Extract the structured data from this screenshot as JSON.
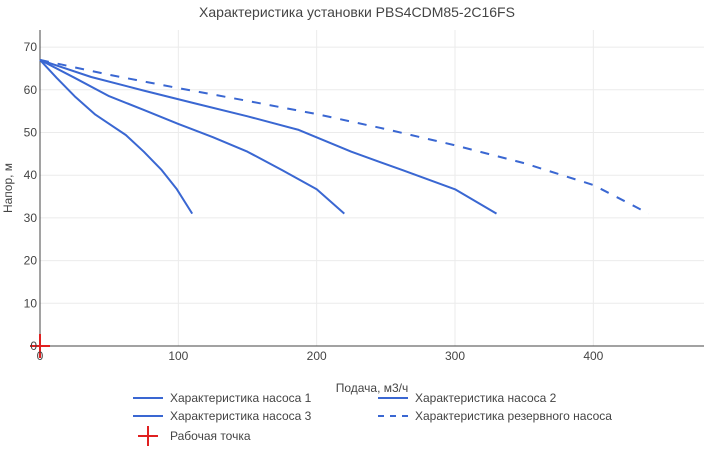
{
  "chart_data": {
    "type": "line",
    "title": "Характеристика установки PBS4CDM85-2C16FS",
    "xlabel": "Подача, м3/ч",
    "ylabel": "Напор, м",
    "xlim": [
      0,
      480
    ],
    "ylim": [
      0,
      74
    ],
    "xticks": [
      0,
      100,
      200,
      300,
      400
    ],
    "yticks": [
      0,
      10,
      20,
      30,
      40,
      50,
      60,
      70
    ],
    "grid": true,
    "legend_position": "bottom",
    "series": [
      {
        "name": "Характеристика насоса 1",
        "color": "#3a67d2",
        "dash": "solid",
        "x": [
          0,
          12,
          25,
          40,
          62,
          75,
          88,
          99,
          110
        ],
        "y": [
          67,
          62.8,
          58.5,
          54.2,
          49.4,
          45.5,
          41.2,
          36.7,
          31
        ]
      },
      {
        "name": "Характеристика насоса 2",
        "color": "#3a67d2",
        "dash": "solid",
        "x": [
          0,
          25,
          50,
          75,
          100,
          125,
          150,
          175,
          200,
          220
        ],
        "y": [
          67,
          62.8,
          58.5,
          55.3,
          52,
          48.9,
          45.5,
          41.2,
          36.7,
          31
        ]
      },
      {
        "name": "Характеристика насоса 3",
        "color": "#3a67d2",
        "dash": "solid",
        "x": [
          0,
          37,
          75,
          112,
          150,
          187,
          225,
          262,
          300,
          330
        ],
        "y": [
          67,
          63,
          59.8,
          56.8,
          53.8,
          50.6,
          45.5,
          41.2,
          36.7,
          31
        ]
      },
      {
        "name": "Характеристика резервного насоса",
        "color": "#3a67d2",
        "dash": "dashed",
        "x": [
          0,
          50,
          100,
          150,
          200,
          250,
          300,
          350,
          400,
          440
        ],
        "y": [
          67,
          63.5,
          60.4,
          57.4,
          54.3,
          50.8,
          47,
          42.8,
          37.7,
          31
        ]
      },
      {
        "name": "Рабочая точка",
        "color": "#e02020",
        "marker": "cross",
        "x": [
          0
        ],
        "y": [
          0
        ]
      }
    ]
  }
}
